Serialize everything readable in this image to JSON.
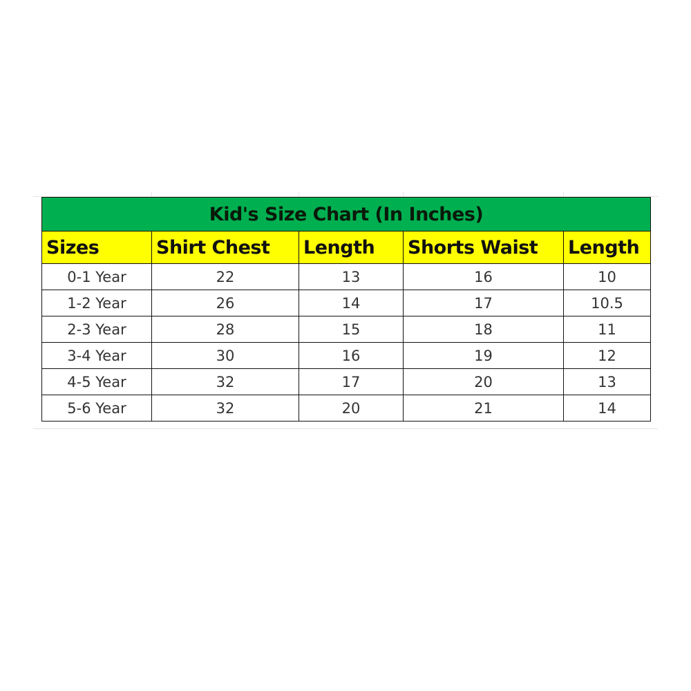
{
  "title": "Kid's Size Chart (In Inches)",
  "colors": {
    "title_bg": "#00b050",
    "header_bg": "#ffff00"
  },
  "headers": [
    "Sizes",
    "Shirt Chest",
    "Length",
    "Shorts Waist",
    "Length"
  ],
  "rows": [
    [
      "0-1 Year",
      "22",
      "13",
      "16",
      "10"
    ],
    [
      "1-2 Year",
      "26",
      "14",
      "17",
      "10.5"
    ],
    [
      "2-3 Year",
      "28",
      "15",
      "18",
      "11"
    ],
    [
      "3-4 Year",
      "30",
      "16",
      "19",
      "12"
    ],
    [
      "4-5 Year",
      "32",
      "17",
      "20",
      "13"
    ],
    [
      "5-6 Year",
      "32",
      "20",
      "21",
      "14"
    ]
  ]
}
